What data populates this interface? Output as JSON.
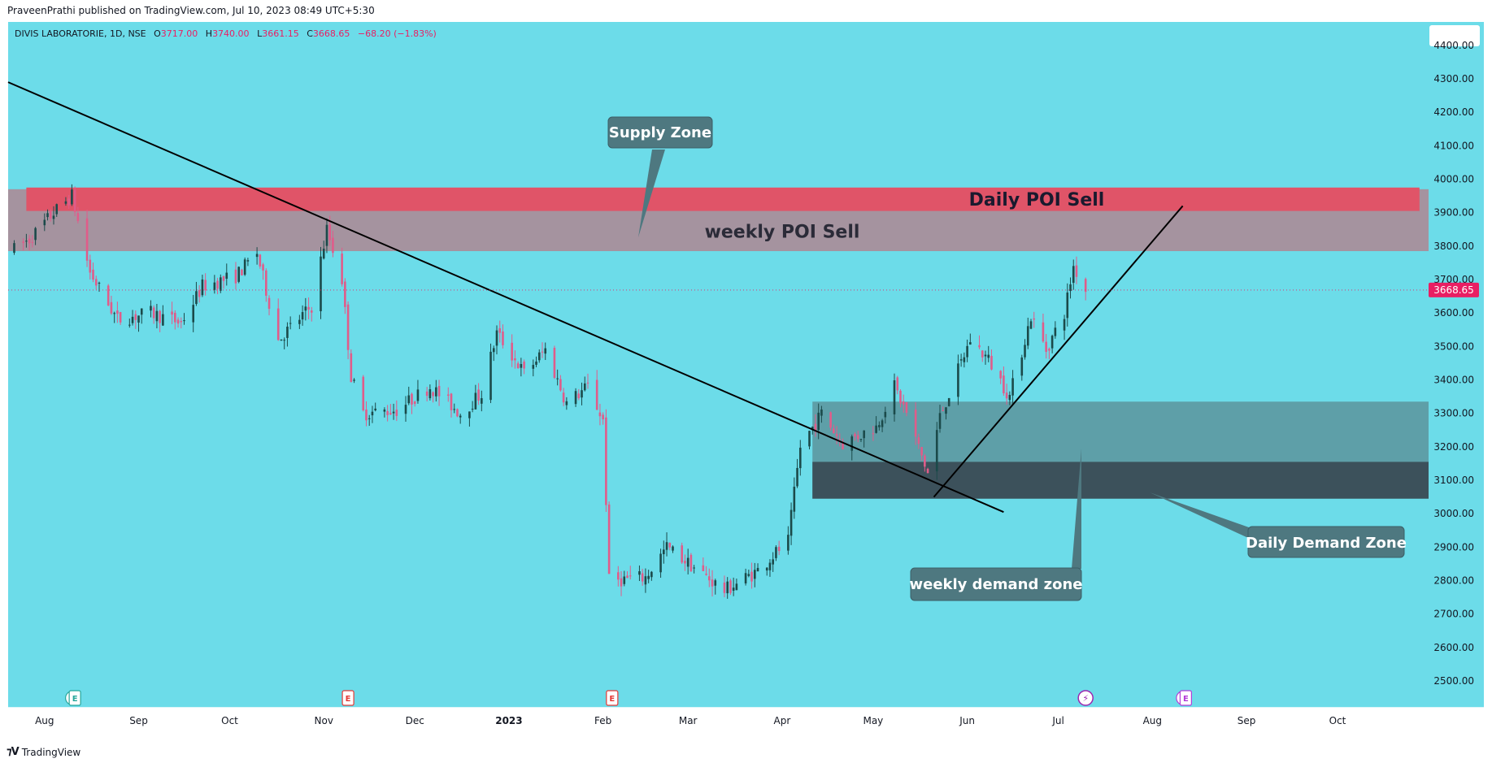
{
  "header": {
    "published": "PraveenPrathi published on TradingView.com, Jul 10, 2023 08:49 UTC+5:30"
  },
  "footer": {
    "brand": "TradingView"
  },
  "colors": {
    "background": "#6cdce9",
    "bull": "#1b4a4a",
    "bear": "#e05c8a",
    "price_tag": "#e91e63",
    "supply_daily": "#e05468",
    "supply_weekly": "#a5939f",
    "demand_weekly": "#5e9fa8",
    "demand_daily": "#3c515b",
    "callout": "#4e7880"
  },
  "chart_data": {
    "type": "candlestick",
    "symbol": "DIVIS LABORATORIE",
    "interval": "1D",
    "exchange": "NSE",
    "ohlc_header": {
      "o_label": "O",
      "o_value": "3717.00",
      "h_label": "H",
      "h_value": "3740.00",
      "l_label": "L",
      "l_value": "3661.15",
      "c_label": "C",
      "c_value": "3668.65",
      "change": "−68.20 (−1.83%)"
    },
    "last_price": "3668.65",
    "ylim": [
      2420,
      4470
    ],
    "yticks": [
      "4400.00",
      "4300.00",
      "4200.00",
      "4100.00",
      "4000.00",
      "3900.00",
      "3800.00",
      "3700.00",
      "3600.00",
      "3500.00",
      "3400.00",
      "3300.00",
      "3200.00",
      "3100.00",
      "3000.00",
      "2900.00",
      "2800.00",
      "2700.00",
      "2600.00",
      "2500.00"
    ],
    "xticks": [
      {
        "label": "Aug",
        "date": "2022-08-01"
      },
      {
        "label": "Sep",
        "date": "2022-09-01"
      },
      {
        "label": "Oct",
        "date": "2022-10-01"
      },
      {
        "label": "Nov",
        "date": "2022-11-01"
      },
      {
        "label": "Dec",
        "date": "2022-12-01"
      },
      {
        "label": "2023",
        "date": "2023-01-01",
        "bold": true
      },
      {
        "label": "Feb",
        "date": "2023-02-01"
      },
      {
        "label": "Mar",
        "date": "2023-03-01"
      },
      {
        "label": "Apr",
        "date": "2023-04-01"
      },
      {
        "label": "May",
        "date": "2023-05-01"
      },
      {
        "label": "Jun",
        "date": "2023-06-01"
      },
      {
        "label": "Jul",
        "date": "2023-07-01"
      },
      {
        "label": "Aug",
        "date": "2023-08-01"
      },
      {
        "label": "Sep",
        "date": "2023-09-01"
      },
      {
        "label": "Oct",
        "date": "2023-10-01"
      }
    ],
    "price_path": [
      [
        "2022-07-22",
        3790
      ],
      [
        "2022-07-27",
        3820
      ],
      [
        "2022-08-04",
        3900
      ],
      [
        "2022-08-10",
        3950
      ],
      [
        "2022-08-16",
        3720
      ],
      [
        "2022-08-25",
        3580
      ],
      [
        "2022-09-05",
        3600
      ],
      [
        "2022-09-15",
        3570
      ],
      [
        "2022-09-22",
        3680
      ],
      [
        "2022-10-03",
        3710
      ],
      [
        "2022-10-10",
        3780
      ],
      [
        "2022-10-17",
        3520
      ],
      [
        "2022-10-28",
        3620
      ],
      [
        "2022-11-02",
        3850
      ],
      [
        "2022-11-07",
        3700
      ],
      [
        "2022-11-10",
        3410
      ],
      [
        "2022-11-14",
        3300
      ],
      [
        "2022-11-25",
        3310
      ],
      [
        "2022-12-06",
        3380
      ],
      [
        "2022-12-16",
        3300
      ],
      [
        "2022-12-23",
        3360
      ],
      [
        "2022-12-28",
        3540
      ],
      [
        "2023-01-06",
        3420
      ],
      [
        "2023-01-13",
        3490
      ],
      [
        "2023-01-20",
        3330
      ],
      [
        "2023-01-27",
        3380
      ],
      [
        "2023-02-01",
        3280
      ],
      [
        "2023-02-03",
        2800
      ],
      [
        "2023-02-15",
        2810
      ],
      [
        "2023-02-22",
        2900
      ],
      [
        "2023-03-03",
        2840
      ],
      [
        "2023-03-13",
        2770
      ],
      [
        "2023-03-24",
        2830
      ],
      [
        "2023-04-03",
        2920
      ],
      [
        "2023-04-07",
        3200
      ],
      [
        "2023-04-14",
        3300
      ],
      [
        "2023-04-21",
        3210
      ],
      [
        "2023-05-02",
        3260
      ],
      [
        "2023-05-08",
        3380
      ],
      [
        "2023-05-12",
        3300
      ],
      [
        "2023-05-19",
        3120
      ],
      [
        "2023-05-23",
        3290
      ],
      [
        "2023-06-02",
        3520
      ],
      [
        "2023-06-08",
        3460
      ],
      [
        "2023-06-15",
        3350
      ],
      [
        "2023-06-22",
        3590
      ],
      [
        "2023-06-27",
        3490
      ],
      [
        "2023-07-03",
        3600
      ],
      [
        "2023-07-06",
        3740
      ],
      [
        "2023-07-10",
        3669
      ]
    ],
    "zones": [
      {
        "name": "weekly-supply",
        "x0": "2022-07-20",
        "x1": "2023-10-31",
        "y0": 3785,
        "y1": 3970,
        "color": "#a5939f"
      },
      {
        "name": "daily-supply",
        "x0": "2022-07-26",
        "x1": "2023-10-28",
        "y0": 3905,
        "y1": 3975,
        "color": "#e05468"
      },
      {
        "name": "weekly-demand",
        "x0": "2023-04-11",
        "x1": "2023-10-31",
        "y0": 3045,
        "y1": 3335,
        "color": "#5e9fa8"
      },
      {
        "name": "daily-demand",
        "x0": "2023-04-11",
        "x1": "2023-10-31",
        "y0": 3045,
        "y1": 3155,
        "color": "#3c515b"
      }
    ],
    "trendlines": [
      {
        "name": "downtrend-line",
        "p1": [
          "2022-07-20",
          4290
        ],
        "p2": [
          "2023-06-13",
          3005
        ]
      },
      {
        "name": "uptrend-line",
        "p1": [
          "2023-05-21",
          3050
        ],
        "p2": [
          "2023-08-11",
          3920
        ]
      }
    ],
    "annotations": {
      "supply_zone": "Supply Zone",
      "daily_poi_sell": "Daily POI Sell",
      "weekly_poi_sell": "weekly POI Sell",
      "daily_demand_zone": "Daily Demand Zone",
      "weekly_demand_zone": "weekly demand zone"
    },
    "event_markers": [
      {
        "date": "2022-08-11",
        "label": "E",
        "kind": "earnings-green"
      },
      {
        "date": "2022-11-09",
        "label": "E",
        "kind": "earnings-red"
      },
      {
        "date": "2023-02-04",
        "label": "E",
        "kind": "earnings-red"
      },
      {
        "date": "2023-07-10",
        "label": "",
        "kind": "lightning"
      },
      {
        "date": "2023-08-12",
        "label": "E",
        "kind": "earnings-purple"
      }
    ]
  }
}
